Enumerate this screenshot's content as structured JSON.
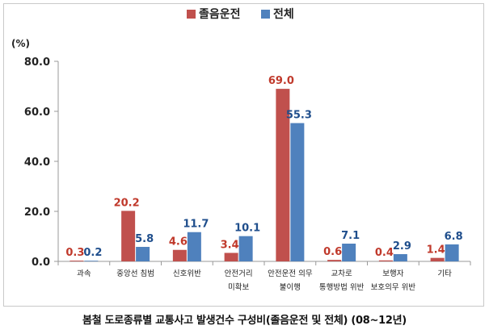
{
  "chart_data": {
    "type": "bar",
    "categories": [
      [
        "과속"
      ],
      [
        "중앙선 침범"
      ],
      [
        "신호위반"
      ],
      [
        "안전거리",
        "미확보"
      ],
      [
        "안전운전 의무",
        "불이행"
      ],
      [
        "교차로",
        "통행방법 위반"
      ],
      [
        "보행자",
        "보호의무 위반"
      ],
      [
        "기타"
      ]
    ],
    "series": [
      {
        "name": "졸음운전",
        "color": "#c0504d",
        "values": [
          0.3,
          20.2,
          4.6,
          3.4,
          69.0,
          0.6,
          0.4,
          1.4
        ]
      },
      {
        "name": "전체",
        "color": "#4f81bd",
        "values": [
          0.2,
          5.8,
          11.7,
          10.1,
          55.3,
          7.1,
          2.9,
          6.8
        ]
      }
    ],
    "value_labels": [
      [
        "0.3",
        "20.2",
        "4.6",
        "3.4",
        "69.0",
        "0.6",
        "0.4",
        "1.4"
      ],
      [
        "0.2",
        "5.8",
        "11.7",
        "10.1",
        "55.3",
        "7.1",
        "2.9",
        "6.8"
      ]
    ],
    "yunit": "(%)",
    "ylim": [
      0,
      80
    ],
    "yticks": [
      "0.0",
      "20.0",
      "40.0",
      "60.0",
      "80.0"
    ],
    "legend_position": "top-center",
    "grid": false
  },
  "caption": "봄철 도로종류별 교통사고 발생건수 구성비(졸음운전 및 전체) (08~12년)"
}
